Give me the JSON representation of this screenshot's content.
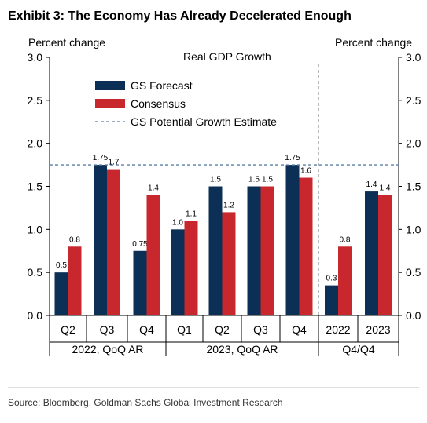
{
  "title": "Exhibit 3: The Economy Has Already Decelerated Enough",
  "source": "Source: Bloomberg, Goldman Sachs Global Investment Research",
  "colors": {
    "gs": "#0c2f55",
    "consensus": "#c8282d",
    "potential": "#5b7fa8",
    "divider": "#8c8c8c"
  },
  "chart_data": {
    "type": "bar",
    "title": "Real GDP Growth",
    "ylabel_left": "Percent change",
    "ylabel_right": "Percent change",
    "ylim": [
      0.0,
      3.0
    ],
    "yticks": [
      "0.0",
      "0.5",
      "1.0",
      "1.5",
      "2.0",
      "2.5",
      "3.0"
    ],
    "categories": [
      "Q2",
      "Q3",
      "Q4",
      "Q1",
      "Q2",
      "Q3",
      "Q4",
      "2022",
      "2023"
    ],
    "groups": [
      "2022, QoQ AR",
      "2023, QoQ AR",
      "Q4/Q4"
    ],
    "series": [
      {
        "name": "GS Forecast",
        "values": [
          0.5,
          1.75,
          0.75,
          1.0,
          1.5,
          1.5,
          1.75,
          0.35,
          1.44
        ],
        "labels": [
          "0.5",
          "1.75",
          "0.75",
          "1.0",
          "1.5",
          "1.5",
          "1.75",
          "0.3",
          "1.4"
        ]
      },
      {
        "name": "Consensus",
        "values": [
          0.8,
          1.7,
          1.4,
          1.1,
          1.2,
          1.5,
          1.6,
          0.8,
          1.4
        ],
        "labels": [
          "0.8",
          "1.7",
          "1.4",
          "1.1",
          "1.2",
          "1.5",
          "1.6",
          "0.8",
          "1.4"
        ]
      }
    ],
    "reference_line": {
      "name": "GS Potential Growth Estimate",
      "value": 1.75
    },
    "legend_position": "upper-left",
    "grid": false
  }
}
